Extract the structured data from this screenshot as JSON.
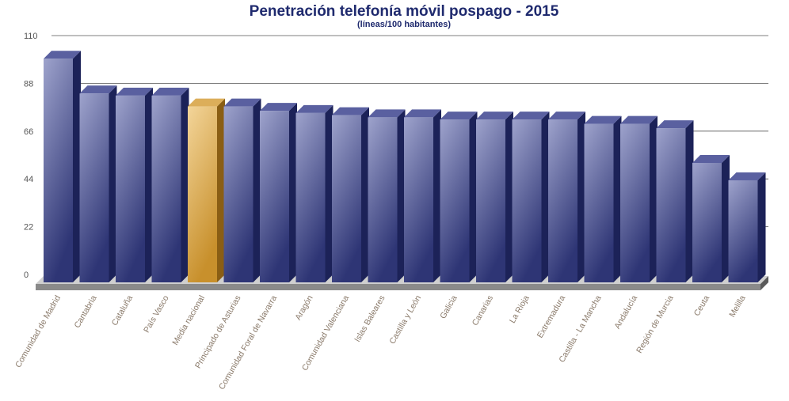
{
  "chart_data": {
    "type": "bar",
    "title": "Penetración telefonía móvil pospago - 2015",
    "subtitle": "(líneas/100 habitantes)",
    "xlabel": "",
    "ylabel": "",
    "ylim": [
      0,
      110
    ],
    "yticks": [
      "0",
      "22",
      "44",
      "66",
      "88",
      "110"
    ],
    "categories": [
      "Comunidad de Madrid",
      "Cantabria",
      "Cataluña",
      "País Vasco",
      "Media nacional",
      "Principado de Asturias",
      "Comunidad Foral de Navarra",
      "Aragón",
      "Comunidad Valenciana",
      "Islas Baleares",
      "Castilla y León",
      "Galicia",
      "Canarias",
      "La Rioja",
      "Extremadura",
      "Castilla - La Mancha",
      "Andalucía",
      "Región de Murcia",
      "Ceuta",
      "Melilla"
    ],
    "values": [
      103,
      87,
      86,
      86,
      81,
      81,
      79,
      78,
      77,
      76,
      76,
      75,
      75,
      75,
      75,
      73,
      73,
      71,
      55,
      47
    ],
    "highlight_category": "Media nacional",
    "colors": {
      "bar": "#2e3575",
      "bar_light": "#9ea3cc",
      "highlight": "#c8902c",
      "highlight_light": "#f3d59a",
      "gridline": "#555555",
      "floor": "#8a8a8a"
    },
    "grid": true,
    "legend": "none"
  }
}
